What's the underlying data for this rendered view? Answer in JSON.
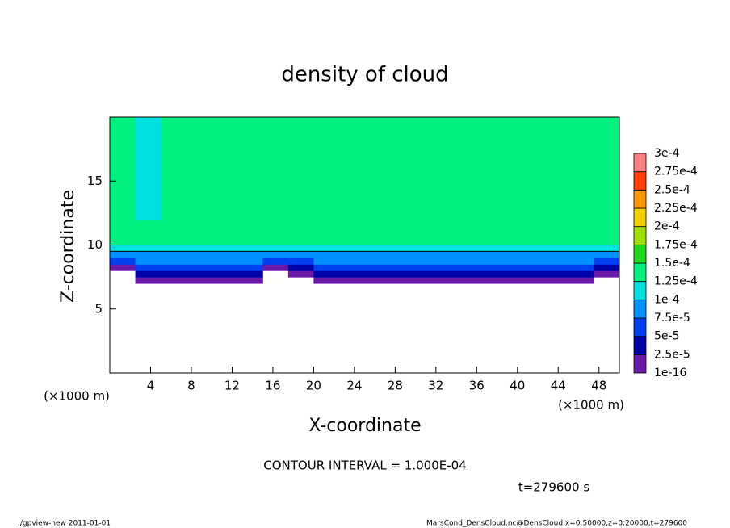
{
  "chart_data": {
    "type": "heatmap",
    "title": "density of cloud",
    "x_label": "X-coordinate",
    "y_label": "Z-coordinate",
    "x_unit_label": "(×1000 m)",
    "annotation": "CONTOUR INTERVAL = 1.000E-04",
    "time_label": "t=279600 s",
    "footer_left": "./gpview-new   2011-01-01",
    "footer_right": "MarsCond_DensCloud.nc@DensCloud,x=0:50000,z=0:20000,t=279600",
    "xlim": [
      0,
      50
    ],
    "ylim": [
      0,
      20
    ],
    "xticks": [
      4,
      8,
      12,
      16,
      20,
      24,
      28,
      32,
      36,
      40,
      44,
      48
    ],
    "yticks": [
      5,
      10,
      15
    ],
    "x_edges": [
      0,
      2.5,
      5,
      7.5,
      10,
      12.5,
      15,
      17.5,
      20,
      22.5,
      25,
      27.5,
      30,
      32.5,
      35,
      37.5,
      40,
      42.5,
      45,
      47.5,
      50
    ],
    "z_edges": [
      7,
      7.5,
      8,
      8.5,
      9,
      9.5,
      10,
      12,
      20
    ],
    "values": [
      [
        null,
        null,
        1e-05,
        5e-05,
        8e-05,
        0.00011,
        0.000135,
        0.00014
      ],
      [
        1e-05,
        3.5e-05,
        6e-05,
        8e-05,
        9e-05,
        0.00011,
        0.000135,
        0.00011
      ],
      [
        1e-05,
        3.5e-05,
        6e-05,
        8e-05,
        9e-05,
        0.00011,
        0.000135,
        0.00014
      ],
      [
        1e-05,
        3.5e-05,
        6e-05,
        8e-05,
        9e-05,
        0.00011,
        0.000135,
        0.00014
      ],
      [
        1e-05,
        3.5e-05,
        6e-05,
        8e-05,
        9e-05,
        0.00011,
        0.000135,
        0.00014
      ],
      [
        1e-05,
        3.5e-05,
        6e-05,
        8e-05,
        9e-05,
        0.00011,
        0.000135,
        0.00014
      ],
      [
        null,
        null,
        1e-05,
        5e-05,
        8e-05,
        0.00011,
        0.000135,
        0.00014
      ],
      [
        null,
        1e-05,
        4e-05,
        7e-05,
        9e-05,
        0.00011,
        0.000135,
        0.00014
      ],
      [
        1e-05,
        3.5e-05,
        6e-05,
        8e-05,
        9e-05,
        0.00011,
        0.000135,
        0.00014
      ],
      [
        1e-05,
        3.5e-05,
        6e-05,
        8e-05,
        9e-05,
        0.00011,
        0.000135,
        0.00014
      ],
      [
        1e-05,
        3.5e-05,
        6e-05,
        8e-05,
        9e-05,
        0.00011,
        0.000135,
        0.00014
      ],
      [
        1e-05,
        3.5e-05,
        6e-05,
        8e-05,
        9e-05,
        0.00011,
        0.000135,
        0.00014
      ],
      [
        1e-05,
        3.5e-05,
        6e-05,
        8e-05,
        9e-05,
        0.00011,
        0.000135,
        0.00014
      ],
      [
        1e-05,
        3.5e-05,
        6e-05,
        8e-05,
        9e-05,
        0.00011,
        0.000135,
        0.00014
      ],
      [
        1e-05,
        3.5e-05,
        6e-05,
        8e-05,
        9e-05,
        0.00011,
        0.000135,
        0.00014
      ],
      [
        1e-05,
        3.5e-05,
        6e-05,
        8e-05,
        9e-05,
        0.00011,
        0.000135,
        0.00014
      ],
      [
        1e-05,
        3.5e-05,
        6e-05,
        8e-05,
        9e-05,
        0.00011,
        0.000135,
        0.00014
      ],
      [
        1e-05,
        3.5e-05,
        6e-05,
        8e-05,
        9e-05,
        0.00011,
        0.000135,
        0.00014
      ],
      [
        1e-05,
        3.5e-05,
        6e-05,
        8e-05,
        9e-05,
        0.00011,
        0.000135,
        0.00014
      ],
      [
        null,
        1e-05,
        4e-05,
        7e-05,
        9e-05,
        0.00011,
        0.000135,
        0.00014
      ]
    ],
    "levels": [
      {
        "value": 1e-16,
        "label": "1e-16"
      },
      {
        "value": 2.5e-05,
        "label": "2.5e-5"
      },
      {
        "value": 5e-05,
        "label": "5e-5"
      },
      {
        "value": 7.5e-05,
        "label": "7.5e-5"
      },
      {
        "value": 0.0001,
        "label": "1e-4"
      },
      {
        "value": 0.000125,
        "label": "1.25e-4"
      },
      {
        "value": 0.00015,
        "label": "1.5e-4"
      },
      {
        "value": 0.000175,
        "label": "1.75e-4"
      },
      {
        "value": 0.0002,
        "label": "2e-4"
      },
      {
        "value": 0.000225,
        "label": "2.25e-4"
      },
      {
        "value": 0.00025,
        "label": "2.5e-4"
      },
      {
        "value": 0.000275,
        "label": "2.75e-4"
      },
      {
        "value": 0.0003,
        "label": "3e-4"
      }
    ],
    "colors": [
      "#6a1aa8",
      "#0000a8",
      "#0040f0",
      "#0090ff",
      "#00e0e0",
      "#00f080",
      "#20d820",
      "#a0e000",
      "#f0d000",
      "#ff9800",
      "#ff4000",
      "#ff8080"
    ]
  }
}
